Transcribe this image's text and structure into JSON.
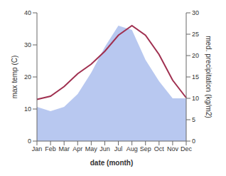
{
  "chart_data": {
    "type": "line",
    "xlabel": "date (month)",
    "ylabel": "max temp (C)",
    "y2label": "med. precipitation (kg/m2)",
    "categories": [
      "Jan",
      "Feb",
      "Mar",
      "Apr",
      "May",
      "Jun",
      "Jul",
      "Aug",
      "Sep",
      "Oct",
      "Nov",
      "Dec"
    ],
    "series": [
      {
        "type": "area",
        "axis": "y2",
        "color": "#b8c8f0",
        "values": [
          8,
          7,
          8,
          11,
          16,
          22,
          27,
          26,
          19,
          14,
          10,
          10
        ]
      },
      {
        "type": "line",
        "color": "#a03050",
        "values": [
          13,
          14,
          17,
          21,
          24,
          28,
          33,
          36,
          33,
          27,
          19,
          13.5
        ]
      }
    ],
    "ylim": [
      0,
      40
    ],
    "yticks": [
      0,
      10,
      20,
      30,
      40
    ],
    "y2lim": [
      0,
      30
    ],
    "y2ticks": [
      0,
      5,
      10,
      15,
      20,
      25,
      30
    ],
    "grid": false
  }
}
